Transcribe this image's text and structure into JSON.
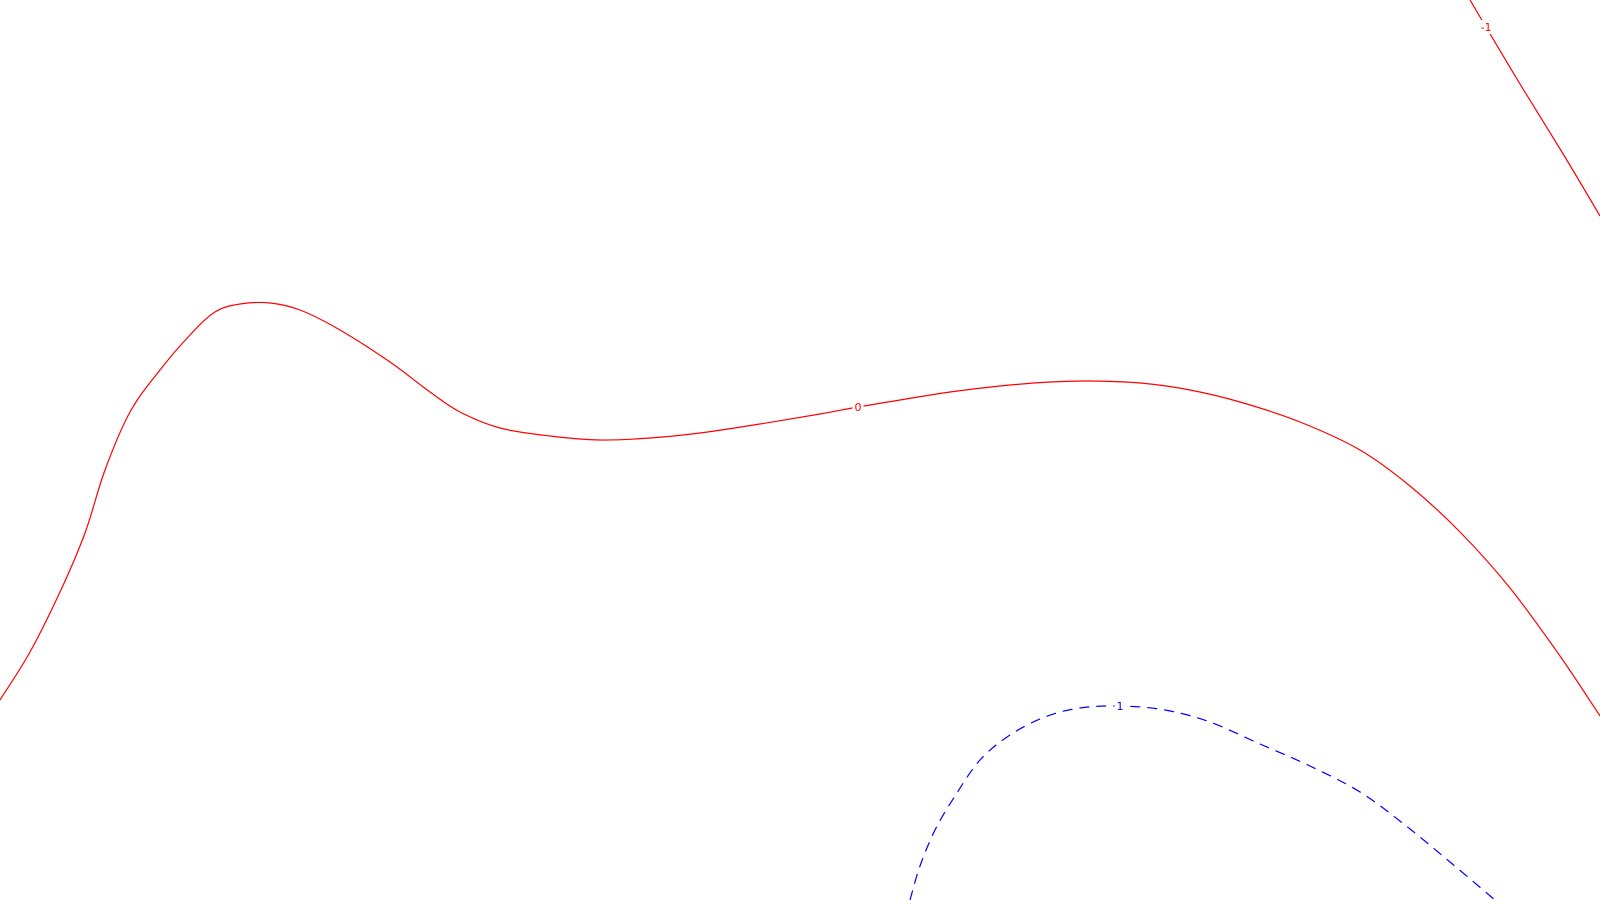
{
  "chart_data": {
    "type": "contour",
    "title": "",
    "xlabel": "",
    "ylabel": "",
    "grid": false,
    "legend": "none",
    "levels": [
      {
        "value": -1,
        "label": "-1",
        "color": "#ff0000",
        "dash": "solid",
        "points": [
          [
            1470,
            0
          ],
          [
            1486,
            27
          ],
          [
            1520,
            84
          ],
          [
            1565,
            157
          ],
          [
            1600,
            216
          ]
        ]
      },
      {
        "value": 0,
        "label": "0",
        "color": "#ff0000",
        "dash": "solid",
        "points": [
          [
            0,
            700
          ],
          [
            30,
            652
          ],
          [
            60,
            592
          ],
          [
            85,
            533
          ],
          [
            105,
            470
          ],
          [
            130,
            412
          ],
          [
            160,
            370
          ],
          [
            190,
            335
          ],
          [
            215,
            312
          ],
          [
            240,
            304
          ],
          [
            270,
            303
          ],
          [
            300,
            310
          ],
          [
            340,
            330
          ],
          [
            390,
            362
          ],
          [
            430,
            392
          ],
          [
            460,
            412
          ],
          [
            500,
            428
          ],
          [
            550,
            436
          ],
          [
            600,
            440
          ],
          [
            650,
            438
          ],
          [
            700,
            433
          ],
          [
            760,
            424
          ],
          [
            820,
            414
          ],
          [
            858,
            407
          ],
          [
            900,
            400
          ],
          [
            950,
            392
          ],
          [
            1000,
            386
          ],
          [
            1050,
            382
          ],
          [
            1090,
            381
          ],
          [
            1140,
            383
          ],
          [
            1190,
            390
          ],
          [
            1240,
            402
          ],
          [
            1300,
            422
          ],
          [
            1360,
            450
          ],
          [
            1410,
            486
          ],
          [
            1460,
            532
          ],
          [
            1510,
            588
          ],
          [
            1560,
            656
          ],
          [
            1600,
            716
          ]
        ]
      },
      {
        "value": 1,
        "label": "1",
        "color": "#0000ff",
        "dash": "dashed",
        "points": [
          [
            910,
            900
          ],
          [
            920,
            866
          ],
          [
            935,
            830
          ],
          [
            955,
            796
          ],
          [
            980,
            760
          ],
          [
            1010,
            735
          ],
          [
            1045,
            717
          ],
          [
            1080,
            708
          ],
          [
            1120,
            706
          ],
          [
            1165,
            710
          ],
          [
            1210,
            722
          ],
          [
            1260,
            744
          ],
          [
            1310,
            766
          ],
          [
            1360,
            792
          ],
          [
            1405,
            825
          ],
          [
            1450,
            862
          ],
          [
            1495,
            900
          ]
        ]
      }
    ],
    "labels_on_lines": [
      {
        "text": "-1",
        "at": [
          1486,
          27
        ]
      },
      {
        "text": "0",
        "at": [
          858,
          407
        ]
      },
      {
        "text": "1",
        "at": [
          1120,
          706
        ]
      }
    ]
  }
}
